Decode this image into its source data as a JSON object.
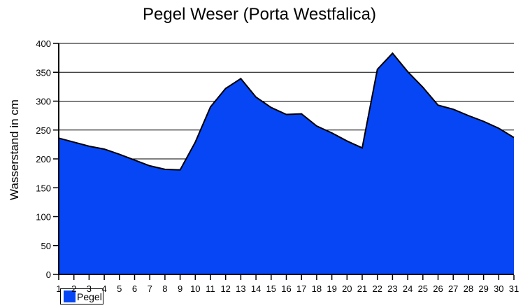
{
  "title": "Pegel Weser (Porta Westfalica)",
  "legend": {
    "label": "Pegel"
  },
  "colors": {
    "background": "#FFFFFF",
    "area_fill": "#0646F5",
    "area_outline": "#000000",
    "axis": "#000000",
    "grid": "#000000",
    "text": "#000000"
  },
  "chart_data": {
    "type": "area",
    "title": "Pegel Weser (Porta Westfalica)",
    "xlabel": "",
    "ylabel": "Wasserstand in cm",
    "x": [
      1,
      2,
      3,
      4,
      5,
      6,
      7,
      8,
      9,
      10,
      11,
      12,
      13,
      14,
      15,
      16,
      17,
      18,
      19,
      20,
      21,
      22,
      23,
      24,
      25,
      26,
      27,
      28,
      29,
      30,
      31
    ],
    "xtick_labels": [
      "1",
      "2",
      "3",
      "4",
      "5",
      "6",
      "7",
      "8",
      "9",
      "10",
      "11",
      "12",
      "13",
      "14",
      "15",
      "16",
      "17",
      "18",
      "19",
      "20",
      "21",
      "22",
      "23",
      "24",
      "25",
      "26",
      "27",
      "28",
      "29",
      "30",
      "31"
    ],
    "series": [
      {
        "name": "Pegel",
        "values": [
          236,
          229,
          222,
          217,
          208,
          198,
          188,
          182,
          181,
          229,
          290,
          322,
          339,
          307,
          289,
          277,
          278,
          257,
          245,
          231,
          219,
          355,
          383,
          351,
          324,
          293,
          286,
          275,
          265,
          253,
          237
        ]
      }
    ],
    "ylim": [
      0,
      400
    ],
    "yticks": [
      0,
      50,
      100,
      150,
      200,
      250,
      300,
      350,
      400
    ],
    "grid": true,
    "legend_position": "bottom-left"
  }
}
